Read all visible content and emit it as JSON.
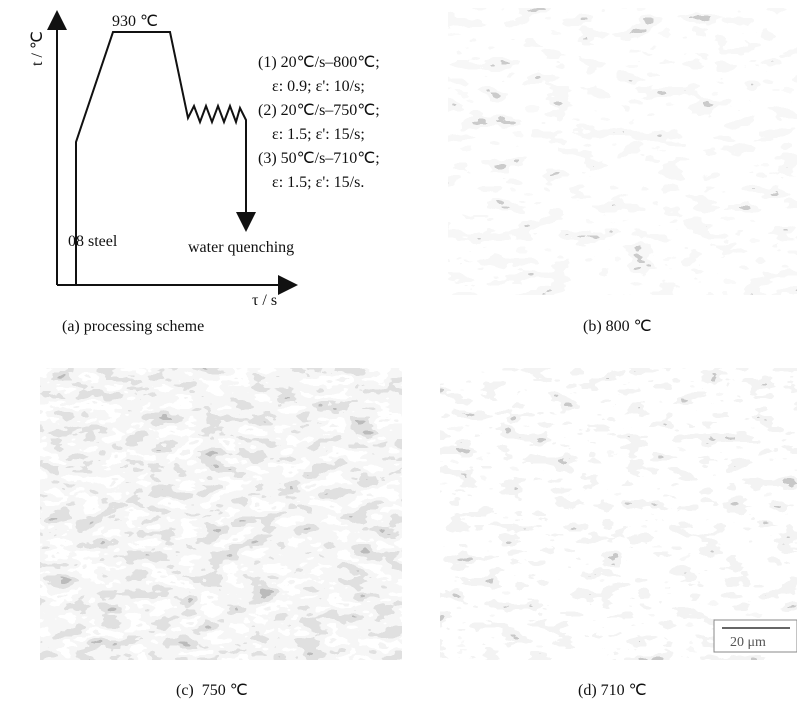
{
  "panel_a": {
    "y_axis_label": "t / ℃",
    "x_axis_label": "τ / s",
    "peak_label": "930 ℃",
    "conditions": [
      "(1) 20℃/s–800℃;",
      "ε: 0.9; ε': 10/s;",
      "(2) 20℃/s–750℃;",
      "ε: 1.5; ε': 15/s;",
      "(3) 50℃/s–710℃;",
      "ε: 1.5; ε': 15/s."
    ],
    "material_label": "08 steel",
    "quench_label": "water quenching",
    "caption": "(a) processing scheme"
  },
  "panel_b": {
    "caption": "(b) 800 ℃"
  },
  "panel_c": {
    "caption": "(c)  750 ℃"
  },
  "panel_d": {
    "caption": "(d) 710 ℃",
    "scale_bar": "20 μm"
  }
}
